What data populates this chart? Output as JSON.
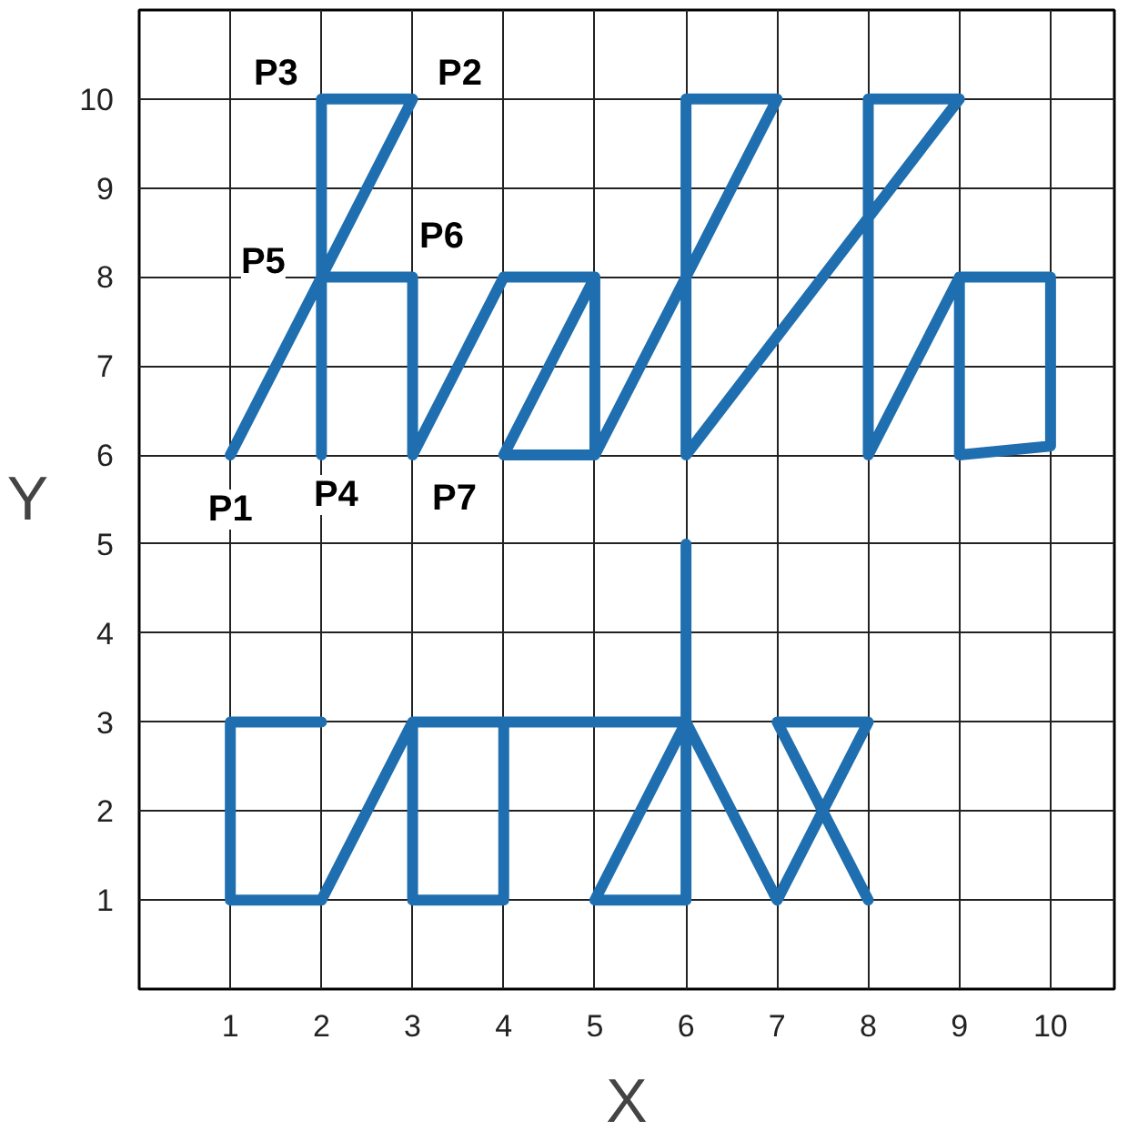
{
  "chart_data": {
    "type": "line",
    "xlabel": "X",
    "ylabel": "Y",
    "xlim": [
      0,
      10.7
    ],
    "ylim": [
      0,
      11
    ],
    "xticks": [
      1,
      2,
      3,
      4,
      5,
      6,
      7,
      8,
      9,
      10
    ],
    "yticks": [
      1,
      2,
      3,
      4,
      5,
      6,
      7,
      8,
      9,
      10
    ],
    "grid": true,
    "marker": "none",
    "line_style": "solid",
    "series": [
      {
        "color": "#1f6fb0",
        "x": [
          1,
          3,
          2,
          2,
          null,
          2,
          3,
          3,
          4,
          5,
          5,
          4,
          5,
          null,
          5,
          7,
          6,
          6,
          9,
          8,
          8,
          9,
          10,
          10,
          9,
          9
        ],
        "values": [
          6,
          10,
          10,
          6,
          null,
          8,
          8,
          6,
          8,
          8,
          6,
          6,
          8,
          null,
          6,
          10,
          10,
          6,
          10,
          10,
          6,
          8,
          8,
          6.1,
          6,
          8
        ]
      },
      {
        "color": "#1f6fb0",
        "x": [
          2,
          1,
          1,
          2,
          3,
          3,
          4,
          4,
          3,
          null,
          4,
          6,
          null,
          6,
          6,
          5,
          6,
          7,
          8,
          7,
          8
        ],
        "values": [
          3,
          3,
          1,
          1,
          3,
          1,
          1,
          3,
          3,
          null,
          3,
          3,
          null,
          5,
          1,
          1,
          3,
          1,
          3,
          3,
          1
        ]
      }
    ],
    "annotations": [
      {
        "text": "P1",
        "x": 1,
        "y": 6
      },
      {
        "text": "P2",
        "x": 3,
        "y": 10
      },
      {
        "text": "P3",
        "x": 2,
        "y": 10
      },
      {
        "text": "P4",
        "x": 2,
        "y": 6
      },
      {
        "text": "P5",
        "x": 2,
        "y": 8
      },
      {
        "text": "P6",
        "x": 3,
        "y": 8
      },
      {
        "text": "P7",
        "x": 3,
        "y": 6
      }
    ]
  }
}
